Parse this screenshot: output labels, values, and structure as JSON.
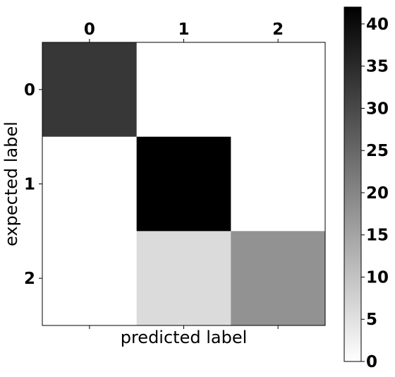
{
  "chart_data": {
    "type": "heatmap",
    "title": "",
    "xlabel": "predicted label",
    "ylabel": "expected label",
    "x_categories": [
      "0",
      "1",
      "2"
    ],
    "y_categories": [
      "0",
      "1",
      "2"
    ],
    "matrix": [
      [
        33,
        0,
        0
      ],
      [
        0,
        42,
        0
      ],
      [
        0,
        6,
        18
      ]
    ],
    "colormap": "gray_r",
    "color_low": "#ffffff",
    "color_high": "#000000",
    "colorbar": {
      "min": 0,
      "max": 42,
      "ticks": [
        0,
        5,
        10,
        15,
        20,
        25,
        30,
        35,
        40
      ],
      "tick_labels": [
        "0",
        "5",
        "10",
        "15",
        "20",
        "25",
        "30",
        "35",
        "40"
      ]
    },
    "x_ticks_position": "top",
    "grid": false
  }
}
